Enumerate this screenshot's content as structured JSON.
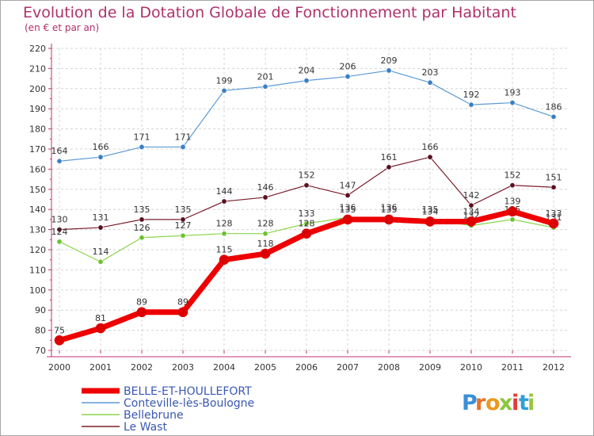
{
  "chart_data": {
    "type": "line",
    "title": "Evolution de la Dotation Globale de Fonctionnement par Habitant",
    "subtitle": "(en € et par an)",
    "xlabel": "",
    "ylabel": "",
    "ylim": [
      70,
      220
    ],
    "yticks": [
      70,
      80,
      90,
      100,
      110,
      120,
      130,
      140,
      150,
      160,
      170,
      180,
      190,
      200,
      210,
      220
    ],
    "grid": true,
    "legend_position": "bottom-left",
    "categories": [
      "2000",
      "2001",
      "2002",
      "2003",
      "2004",
      "2005",
      "2006",
      "2007",
      "2008",
      "2009",
      "2010",
      "2011",
      "2012"
    ],
    "series": [
      {
        "name": "Conteville-lès-Boulogne",
        "color": "#5b9bd5",
        "dot": "#3a7fc4",
        "width": 1.2,
        "values": [
          164,
          166,
          171,
          171,
          199,
          201,
          204,
          206,
          209,
          203,
          192,
          193,
          186
        ]
      },
      {
        "name": "Le Wast",
        "color": "#7a1e2b",
        "dot": "#5a1020",
        "width": 1.2,
        "values": [
          130,
          131,
          135,
          135,
          144,
          146,
          152,
          147,
          161,
          166,
          142,
          152,
          151
        ]
      },
      {
        "name": "Bellebrune",
        "color": "#8cd64a",
        "dot": "#6cc230",
        "width": 1.2,
        "values": [
          124,
          114,
          126,
          127,
          128,
          128,
          133,
          136,
          136,
          135,
          132,
          135,
          131
        ]
      },
      {
        "name": "BELLE-ET-HOULLEFORT",
        "color": "#ee0000",
        "dot": "#dd0000",
        "width": 7,
        "values": [
          75,
          81,
          89,
          89,
          115,
          118,
          128,
          135,
          135,
          134,
          134,
          139,
          133
        ]
      }
    ],
    "legend_order": [
      "BELLE-ET-HOULLEFORT",
      "Conteville-lès-Boulogne",
      "Bellebrune",
      "Le Wast"
    ]
  },
  "logo": {
    "text": "Proxiti",
    "letters": [
      "P",
      "r",
      "o",
      "x",
      "i",
      "t",
      "i"
    ]
  }
}
